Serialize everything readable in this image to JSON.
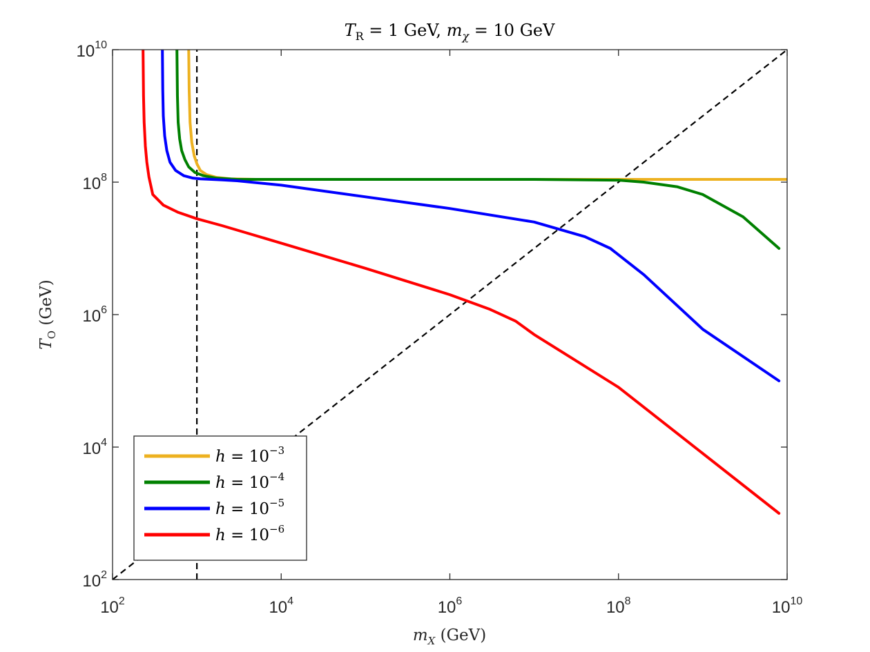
{
  "chart_data": {
    "type": "line",
    "x_scale": "log",
    "y_scale": "log",
    "title": {
      "T": "T",
      "T_sub": "R",
      "mid": " = 1 GeV, ",
      "m": "m",
      "m_sub": "χ",
      "end": " = 10 GeV"
    },
    "xlabel": {
      "sym": "m",
      "sub": "X",
      "unit": " (GeV)"
    },
    "ylabel": {
      "sym": "T",
      "sub": "O",
      "unit": " (GeV)"
    },
    "xlim": [
      100,
      10000000000
    ],
    "ylim": [
      100,
      10000000000
    ],
    "x_ticks": [
      {
        "base": "10",
        "exp": "2",
        "value": 100
      },
      {
        "base": "10",
        "exp": "4",
        "value": 10000
      },
      {
        "base": "10",
        "exp": "6",
        "value": 1000000
      },
      {
        "base": "10",
        "exp": "8",
        "value": 100000000
      },
      {
        "base": "10",
        "exp": "10",
        "value": 10000000000
      }
    ],
    "y_ticks": [
      {
        "base": "10",
        "exp": "2",
        "value": 100
      },
      {
        "base": "10",
        "exp": "4",
        "value": 10000
      },
      {
        "base": "10",
        "exp": "6",
        "value": 1000000
      },
      {
        "base": "10",
        "exp": "8",
        "value": 100000000
      },
      {
        "base": "10",
        "exp": "10",
        "value": 10000000000
      }
    ],
    "reference_lines": [
      {
        "name": "vertical-dashed",
        "x": [
          1000,
          1000
        ],
        "y": [
          100,
          10000000000
        ],
        "color": "#000000"
      },
      {
        "name": "diagonal-dashed",
        "x": [
          100,
          10000000000
        ],
        "y": [
          100,
          10000000000
        ],
        "color": "#000000"
      }
    ],
    "series": [
      {
        "name": "h = 10^-3",
        "label": {
          "text": "h = 10",
          "exp": "−3"
        },
        "color": "#EDB120",
        "x": [
          800,
          810,
          830,
          870,
          930,
          1000,
          1100,
          1300,
          1700,
          2500,
          5000,
          10000000000
        ],
        "y": [
          10000000000,
          2500000000,
          800000000,
          400000000,
          250000000,
          190000000,
          150000000,
          130000000,
          118000000,
          112000000,
          110000000,
          110000000
        ]
      },
      {
        "name": "h = 10^-4",
        "label": {
          "text": "h = 10",
          "exp": "−4"
        },
        "color": "#008000",
        "x": [
          580,
          588,
          600,
          625,
          660,
          720,
          800,
          950,
          1200,
          1700,
          3000,
          10000000,
          100000000,
          200000000,
          500000000,
          1000000000,
          3000000000,
          8000000000
        ],
        "y": [
          10000000000,
          2000000000,
          800000000,
          450000000,
          300000000,
          220000000,
          170000000,
          140000000,
          125000000,
          115000000,
          110000000,
          110000000,
          107000000,
          100000000,
          85000000,
          65000000,
          30000000,
          10000000
        ]
      },
      {
        "name": "h = 10^-5",
        "label": {
          "text": "h = 10",
          "exp": "−5"
        },
        "color": "#0000FF",
        "x": [
          390,
          394,
          400,
          415,
          440,
          480,
          560,
          700,
          900,
          1100,
          1500,
          2000,
          3000,
          10000,
          100000,
          1000000,
          10000000,
          40000000,
          80000000,
          200000000,
          1000000000,
          8000000000
        ],
        "y": [
          10000000000,
          2500000000,
          1000000000,
          500000000,
          300000000,
          200000000,
          150000000,
          125000000,
          115000000,
          112000000,
          110000000,
          108000000,
          105000000,
          90000000,
          60000000,
          40000000,
          25000000,
          15000000,
          10000000,
          4000000,
          600000,
          100000
        ]
      },
      {
        "name": "h = 10^-6",
        "label": {
          "text": "h = 10",
          "exp": "−6"
        },
        "color": "#FF0000",
        "x": [
          230,
          233,
          237,
          245,
          255,
          270,
          300,
          400,
          600,
          1000,
          2000,
          10000,
          100000,
          1000000,
          3000000,
          6000000,
          10000000,
          100000000,
          8000000000
        ],
        "y": [
          10000000000,
          2000000000,
          800000000,
          350000000,
          200000000,
          120000000,
          65000000,
          45000000,
          35000000,
          28000000,
          22000000,
          12000000,
          5000000,
          2000000,
          1200000,
          800000,
          500000,
          80000,
          1000
        ]
      }
    ],
    "legend": {
      "position": "bottom-left"
    }
  }
}
